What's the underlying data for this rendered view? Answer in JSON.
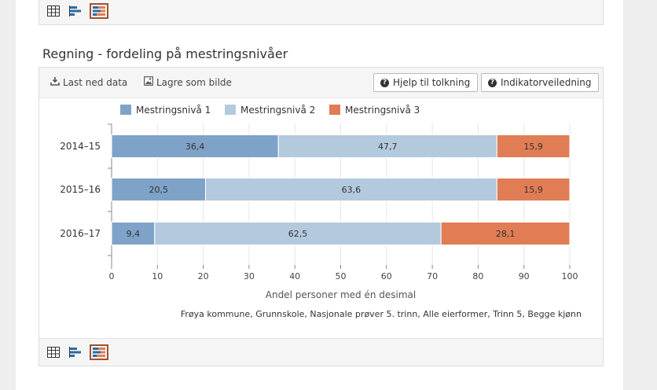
{
  "section_title": "Regning - fordeling på mestringsnivåer",
  "toolbar": {
    "download_label": "Last ned data",
    "save_image_label": "Lagre som bilde",
    "help_label": "Hjelp til tolkning",
    "indicator_label": "Indikatorveiledning"
  },
  "view_icons": [
    "table-icon",
    "bar-chart-icon",
    "stacked-bar-icon"
  ],
  "source_note": "Frøya kommune, Grunnskole, Nasjonale prøver 5. trinn, Alle eierformer, Trinn 5, Begge kjønn",
  "colors": {
    "level1": "#7fa3c8",
    "level2": "#b3c9de",
    "level3": "#e07d54",
    "active_icon_border": "#a0522d"
  },
  "chart_data": {
    "type": "bar",
    "orientation": "horizontal",
    "stacked": true,
    "categories": [
      "2014–15",
      "2015–16",
      "2016–17"
    ],
    "series": [
      {
        "name": "Mestringsnivå 1",
        "values": [
          36.4,
          20.5,
          9.4
        ],
        "labels": [
          "36,4",
          "20,5",
          "9,4"
        ]
      },
      {
        "name": "Mestringsnivå 2",
        "values": [
          47.7,
          63.6,
          62.5
        ],
        "labels": [
          "47,7",
          "63,6",
          "62,5"
        ]
      },
      {
        "name": "Mestringsnivå 3",
        "values": [
          15.9,
          15.9,
          28.1
        ],
        "labels": [
          "15,9",
          "15,9",
          "28,1"
        ]
      }
    ],
    "xlabel": "Andel personer med én desimal",
    "xlim": [
      0,
      100
    ],
    "xticks": [
      "0",
      "10",
      "20",
      "30",
      "40",
      "50",
      "60",
      "70",
      "80",
      "90",
      "100"
    ],
    "legend_position": "top",
    "grid": true
  }
}
